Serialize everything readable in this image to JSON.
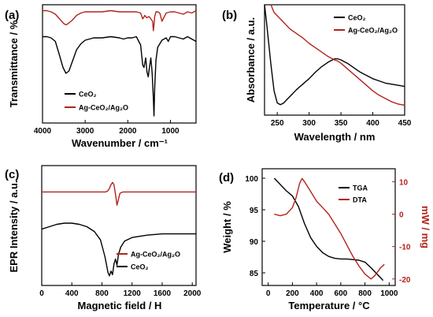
{
  "colors": {
    "black": "#000000",
    "red": "#b3231b"
  },
  "chart_data": [
    {
      "id": "a",
      "panel_label": "(a)",
      "type": "line",
      "xlabel": "Wavenumber / cm⁻¹",
      "ylabel": "Transmittance / %",
      "xlim": [
        4000,
        400
      ],
      "ylim": [
        0,
        1
      ],
      "x_ticks": [
        4000,
        3000,
        2000,
        1000
      ],
      "y_ticks": [],
      "legend": {
        "position": "lower-middle",
        "entries": [
          "CeO₂",
          "Ag-CeO₂/Ag₂O"
        ]
      },
      "series": [
        {
          "name": "CeO₂",
          "color": "#000000",
          "x": [
            4000,
            3900,
            3800,
            3700,
            3600,
            3520,
            3450,
            3380,
            3300,
            3200,
            3100,
            3000,
            2900,
            2800,
            2600,
            2400,
            2200,
            2100,
            2000,
            1900,
            1800,
            1700,
            1650,
            1620,
            1580,
            1550,
            1520,
            1500,
            1460,
            1430,
            1400,
            1385,
            1370,
            1340,
            1300,
            1200,
            1100,
            1050,
            1000,
            900,
            800,
            700,
            600,
            500,
            400
          ],
          "y": [
            0.73,
            0.73,
            0.72,
            0.69,
            0.57,
            0.47,
            0.42,
            0.44,
            0.52,
            0.62,
            0.67,
            0.7,
            0.71,
            0.72,
            0.72,
            0.73,
            0.72,
            0.71,
            0.72,
            0.72,
            0.73,
            0.66,
            0.49,
            0.47,
            0.55,
            0.43,
            0.39,
            0.45,
            0.55,
            0.43,
            0.21,
            0.06,
            0.3,
            0.53,
            0.64,
            0.7,
            0.72,
            0.69,
            0.73,
            0.73,
            0.72,
            0.71,
            0.73,
            0.71,
            0.69
          ]
        },
        {
          "name": "Ag-CeO₂/Ag₂O",
          "color": "#b3231b",
          "x": [
            4000,
            3900,
            3800,
            3700,
            3600,
            3500,
            3450,
            3400,
            3300,
            3200,
            3100,
            3000,
            2900,
            2800,
            2600,
            2400,
            2200,
            2000,
            1800,
            1700,
            1650,
            1600,
            1560,
            1500,
            1460,
            1420,
            1400,
            1385,
            1370,
            1340,
            1300,
            1250,
            1200,
            1100,
            1000,
            900,
            800,
            700,
            600,
            500,
            400
          ],
          "y": [
            0.95,
            0.95,
            0.94,
            0.92,
            0.88,
            0.84,
            0.83,
            0.84,
            0.87,
            0.91,
            0.93,
            0.94,
            0.94,
            0.94,
            0.94,
            0.95,
            0.94,
            0.94,
            0.94,
            0.93,
            0.88,
            0.91,
            0.89,
            0.9,
            0.88,
            0.86,
            0.78,
            0.83,
            0.9,
            0.94,
            0.94,
            0.93,
            0.86,
            0.93,
            0.94,
            0.94,
            0.93,
            0.92,
            0.94,
            0.93,
            0.95
          ]
        }
      ]
    },
    {
      "id": "b",
      "panel_label": "(b)",
      "type": "line",
      "xlabel": "Wavelength / nm",
      "ylabel": "Absorbance / a.u.",
      "xlim": [
        230,
        450
      ],
      "ylim": [
        0,
        1
      ],
      "x_ticks": [
        250,
        300,
        350,
        400,
        450
      ],
      "y_ticks": [],
      "legend": {
        "position": "top-right",
        "entries": [
          "CeO₂",
          "Ag-CeO₂/Ag₂O"
        ]
      },
      "series": [
        {
          "name": "CeO₂",
          "color": "#000000",
          "x": [
            230,
            233,
            236,
            240,
            245,
            250,
            255,
            260,
            265,
            270,
            280,
            290,
            300,
            310,
            320,
            330,
            340,
            345,
            350,
            360,
            370,
            380,
            390,
            400,
            410,
            420,
            430,
            440,
            450
          ],
          "y": [
            1.0,
            0.85,
            0.68,
            0.46,
            0.22,
            0.11,
            0.095,
            0.11,
            0.14,
            0.17,
            0.23,
            0.28,
            0.33,
            0.39,
            0.44,
            0.48,
            0.51,
            0.51,
            0.5,
            0.47,
            0.43,
            0.39,
            0.36,
            0.33,
            0.31,
            0.29,
            0.28,
            0.27,
            0.26
          ]
        },
        {
          "name": "Ag-CeO₂/Ag₂O",
          "color": "#b3231b",
          "x": [
            240,
            245,
            250,
            260,
            270,
            280,
            290,
            300,
            310,
            320,
            330,
            340,
            345,
            350,
            360,
            370,
            380,
            390,
            400,
            410,
            420,
            430,
            440,
            450
          ],
          "y": [
            1.0,
            0.93,
            0.9,
            0.84,
            0.78,
            0.74,
            0.7,
            0.65,
            0.61,
            0.57,
            0.53,
            0.5,
            0.49,
            0.47,
            0.42,
            0.37,
            0.32,
            0.27,
            0.22,
            0.18,
            0.15,
            0.12,
            0.1,
            0.09
          ]
        }
      ]
    },
    {
      "id": "c",
      "panel_label": "(c)",
      "type": "line",
      "xlabel": "Magnetic field / H",
      "ylabel": "EPR Intensity / a.u.",
      "xlim": [
        0,
        2050
      ],
      "ylim": [
        0,
        1
      ],
      "x_ticks": [
        0,
        400,
        800,
        1200,
        1600,
        2000
      ],
      "y_ticks": [],
      "legend": {
        "position": "lower-right",
        "entries": [
          "Ag-CeO₂/Ag₂O",
          "CeO₂"
        ]
      },
      "series": [
        {
          "name": "Ag-CeO₂/Ag₂O",
          "color": "#b3231b",
          "x": [
            0,
            200,
            400,
            600,
            800,
            850,
            880,
            900,
            920,
            940,
            960,
            980,
            1000,
            1020,
            1040,
            1080,
            1200,
            1600,
            2000,
            2050
          ],
          "y": [
            0.78,
            0.78,
            0.78,
            0.78,
            0.78,
            0.78,
            0.79,
            0.81,
            0.84,
            0.86,
            0.84,
            0.76,
            0.67,
            0.72,
            0.77,
            0.78,
            0.78,
            0.78,
            0.78,
            0.78
          ]
        },
        {
          "name": "CeO₂",
          "color": "#000000",
          "x": [
            0,
            100,
            200,
            300,
            400,
            500,
            600,
            700,
            780,
            840,
            880,
            900,
            920,
            940,
            960,
            980,
            1000,
            1020,
            1050,
            1100,
            1200,
            1400,
            1600,
            1800,
            2000,
            2050
          ],
          "y": [
            0.47,
            0.49,
            0.51,
            0.52,
            0.52,
            0.51,
            0.49,
            0.45,
            0.38,
            0.24,
            0.11,
            0.08,
            0.12,
            0.09,
            0.18,
            0.22,
            0.17,
            0.26,
            0.32,
            0.37,
            0.4,
            0.42,
            0.43,
            0.43,
            0.43,
            0.43
          ]
        }
      ]
    },
    {
      "id": "d",
      "panel_label": "(d)",
      "type": "line",
      "xlabel": "Temperature / °C",
      "ylabel": "Weight / %",
      "y2label": "mW / mg",
      "xlim": [
        -50,
        1050
      ],
      "ylim": [
        83,
        101.5
      ],
      "y2lim": [
        -22,
        14
      ],
      "x_ticks": [
        0,
        200,
        400,
        600,
        800,
        1000
      ],
      "y_ticks": [
        85,
        90,
        95,
        100
      ],
      "y2_ticks": [
        -20,
        -10,
        0,
        10
      ],
      "legend": {
        "position": "top-right",
        "entries": [
          "TGA",
          "DTA"
        ]
      },
      "series": [
        {
          "name": "TGA",
          "color": "#000000",
          "axis": "left",
          "x": [
            50,
            100,
            150,
            200,
            250,
            300,
            350,
            400,
            450,
            500,
            550,
            600,
            650,
            700,
            750,
            800,
            850,
            900,
            950
          ],
          "y": [
            100.0,
            99.0,
            98.0,
            97.2,
            95.5,
            92.8,
            90.6,
            89.2,
            88.2,
            87.6,
            87.3,
            87.2,
            87.2,
            87.1,
            87.0,
            86.7,
            85.8,
            84.8,
            83.8
          ]
        },
        {
          "name": "DTA",
          "color": "#b3231b",
          "axis": "right",
          "x": [
            50,
            100,
            150,
            200,
            230,
            260,
            280,
            300,
            350,
            400,
            450,
            500,
            550,
            600,
            650,
            700,
            750,
            800,
            850,
            880,
            900,
            930,
            960
          ],
          "y": [
            0.0,
            -0.5,
            0.0,
            2.0,
            5.0,
            9.5,
            11.0,
            10.0,
            7.0,
            4.0,
            2.0,
            0.0,
            -3.0,
            -6.0,
            -9.5,
            -13.0,
            -16.0,
            -18.5,
            -20.0,
            -19.0,
            -18.0,
            -16.5,
            -15.5
          ]
        }
      ]
    }
  ]
}
